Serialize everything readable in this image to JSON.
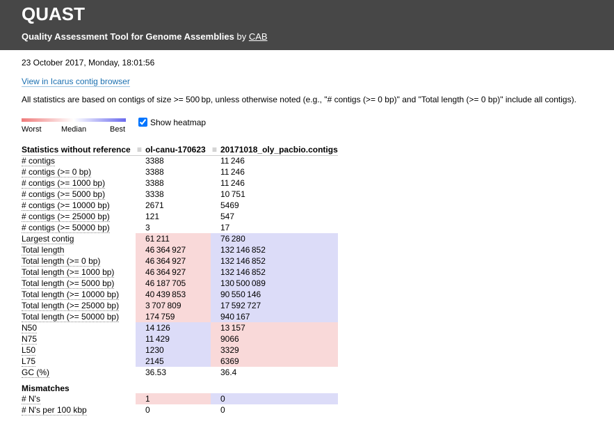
{
  "header": {
    "title": "QUAST",
    "subtitle": "Quality Assessment Tool for Genome Assemblies",
    "by": "by",
    "author": "CAB"
  },
  "date": "23 October 2017, Monday, 18:01:56",
  "icarus_link": "View in Icarus contig browser",
  "note": "All statistics are based on contigs of size >= 500 bp, unless otherwise noted (e.g., \"# contigs (>= 0 bp)\" and \"Total length (>= 0 bp)\" include all contigs).",
  "legend": {
    "worst": "Worst",
    "median": "Median",
    "best": "Best",
    "toggle": "Show heatmap"
  },
  "table": {
    "columns": [
      "Statistics without reference",
      "ol-canu-170623",
      "20171018_oly_pacbio.contigs"
    ],
    "heat_colors": {
      "worst": "#f9d9d9",
      "best": "#dcdcf8"
    },
    "sections": [
      {
        "rows": [
          {
            "label": "# contigs",
            "values": [
              "3388",
              "11 246"
            ]
          },
          {
            "label": "# contigs (>= 0 bp)",
            "values": [
              "3388",
              "11 246"
            ]
          },
          {
            "label": "# contigs (>= 1000 bp)",
            "values": [
              "3388",
              "11 246"
            ]
          },
          {
            "label": "# contigs (>= 5000 bp)",
            "values": [
              "3338",
              "10 751"
            ]
          },
          {
            "label": "# contigs (>= 10000 bp)",
            "values": [
              "2671",
              "5469"
            ]
          },
          {
            "label": "# contigs (>= 25000 bp)",
            "values": [
              "121",
              "547"
            ]
          },
          {
            "label": "# contigs (>= 50000 bp)",
            "values": [
              "3",
              "17"
            ]
          },
          {
            "label": "Largest contig",
            "values": [
              "61 211",
              "76 280"
            ],
            "heat": [
              "worst",
              "best"
            ]
          },
          {
            "label": "Total length",
            "values": [
              "46 364 927",
              "132 146 852"
            ],
            "heat": [
              "worst",
              "best"
            ]
          },
          {
            "label": "Total length (>= 0 bp)",
            "values": [
              "46 364 927",
              "132 146 852"
            ],
            "heat": [
              "worst",
              "best"
            ]
          },
          {
            "label": "Total length (>= 1000 bp)",
            "values": [
              "46 364 927",
              "132 146 852"
            ],
            "heat": [
              "worst",
              "best"
            ]
          },
          {
            "label": "Total length (>= 5000 bp)",
            "values": [
              "46 187 705",
              "130 500 089"
            ],
            "heat": [
              "worst",
              "best"
            ]
          },
          {
            "label": "Total length (>= 10000 bp)",
            "values": [
              "40 439 853",
              "90 550 146"
            ],
            "heat": [
              "worst",
              "best"
            ]
          },
          {
            "label": "Total length (>= 25000 bp)",
            "values": [
              "3 707 809",
              "17 592 727"
            ],
            "heat": [
              "worst",
              "best"
            ]
          },
          {
            "label": "Total length (>= 50000 bp)",
            "values": [
              "174 759",
              "940 167"
            ],
            "heat": [
              "worst",
              "best"
            ]
          },
          {
            "label": "N50",
            "values": [
              "14 126",
              "13 157"
            ],
            "heat": [
              "best",
              "worst"
            ]
          },
          {
            "label": "N75",
            "values": [
              "11 429",
              "9066"
            ],
            "heat": [
              "best",
              "worst"
            ]
          },
          {
            "label": "L50",
            "values": [
              "1230",
              "3329"
            ],
            "heat": [
              "best",
              "worst"
            ]
          },
          {
            "label": "L75",
            "values": [
              "2145",
              "6369"
            ],
            "heat": [
              "best",
              "worst"
            ]
          },
          {
            "label": "GC (%)",
            "values": [
              "36.53",
              "36.4"
            ]
          }
        ]
      },
      {
        "title": "Mismatches",
        "rows": [
          {
            "label": "# N's",
            "values": [
              "1",
              "0"
            ],
            "heat": [
              "worst",
              "best"
            ]
          },
          {
            "label": "# N's per 100 kbp",
            "values": [
              "0",
              "0"
            ]
          }
        ]
      }
    ]
  }
}
